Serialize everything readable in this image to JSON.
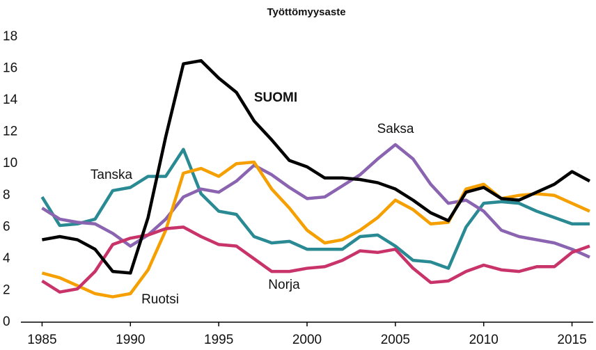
{
  "chart_data": {
    "type": "line",
    "title": "Työttömyysaste",
    "x": [
      1985,
      1986,
      1987,
      1988,
      1989,
      1990,
      1991,
      1992,
      1993,
      1994,
      1995,
      1996,
      1997,
      1998,
      1999,
      2000,
      2001,
      2002,
      2003,
      2004,
      2005,
      2006,
      2007,
      2008,
      2009,
      2010,
      2011,
      2012,
      2013,
      2014,
      2015,
      2016
    ],
    "series": [
      {
        "name": "Tanska",
        "color": "#2a8a94",
        "values": [
          7.9,
          6.1,
          6.2,
          6.5,
          8.3,
          8.5,
          9.2,
          9.2,
          10.9,
          8.1,
          7.0,
          6.8,
          5.4,
          5.0,
          5.1,
          4.6,
          4.6,
          4.6,
          5.4,
          5.5,
          4.8,
          3.9,
          3.8,
          3.4,
          6.0,
          7.5,
          7.6,
          7.5,
          7.0,
          6.6,
          6.2,
          6.2
        ]
      },
      {
        "name": "Saksa",
        "color": "#8a64b0",
        "values": [
          7.2,
          6.5,
          6.3,
          6.2,
          5.6,
          4.8,
          5.5,
          6.5,
          7.9,
          8.4,
          8.2,
          8.9,
          9.9,
          9.3,
          8.5,
          7.8,
          7.9,
          8.6,
          9.3,
          10.3,
          11.2,
          10.3,
          8.7,
          7.5,
          7.7,
          7.0,
          5.8,
          5.4,
          5.2,
          5.0,
          4.6,
          4.1
        ]
      },
      {
        "name": "Ruotsi",
        "color": "#f5a000",
        "values": [
          3.1,
          2.8,
          2.3,
          1.8,
          1.6,
          1.8,
          3.3,
          5.8,
          9.4,
          9.7,
          9.2,
          10.0,
          10.1,
          8.4,
          7.2,
          5.8,
          5.0,
          5.2,
          5.8,
          6.6,
          7.7,
          7.1,
          6.2,
          6.3,
          8.4,
          8.7,
          7.8,
          8.0,
          8.1,
          8.0,
          7.5,
          7.0
        ]
      },
      {
        "name": "Norja",
        "color": "#c8336a",
        "values": [
          2.6,
          1.9,
          2.1,
          3.2,
          4.9,
          5.3,
          5.5,
          5.9,
          6.0,
          5.4,
          4.9,
          4.8,
          4.0,
          3.2,
          3.2,
          3.4,
          3.5,
          3.9,
          4.5,
          4.4,
          4.6,
          3.4,
          2.5,
          2.6,
          3.2,
          3.6,
          3.3,
          3.2,
          3.5,
          3.5,
          4.4,
          4.8
        ]
      },
      {
        "name": "SUOMI",
        "color": "#000000",
        "values": [
          5.2,
          5.4,
          5.2,
          4.6,
          3.2,
          3.1,
          6.6,
          11.7,
          16.3,
          16.5,
          15.4,
          14.5,
          12.7,
          11.5,
          10.2,
          9.8,
          9.1,
          9.1,
          9.0,
          8.8,
          8.4,
          7.7,
          6.9,
          6.4,
          8.2,
          8.5,
          7.8,
          7.7,
          8.2,
          8.7,
          9.5,
          8.9
        ]
      }
    ],
    "xlim": [
      1983.8,
      2016.2
    ],
    "xticks": [
      1985,
      1990,
      1995,
      2000,
      2005,
      2010,
      2015
    ],
    "ylim": [
      0,
      18
    ],
    "yticks": [
      0,
      2,
      4,
      6,
      8,
      10,
      12,
      14,
      16,
      18
    ],
    "grid": false
  }
}
